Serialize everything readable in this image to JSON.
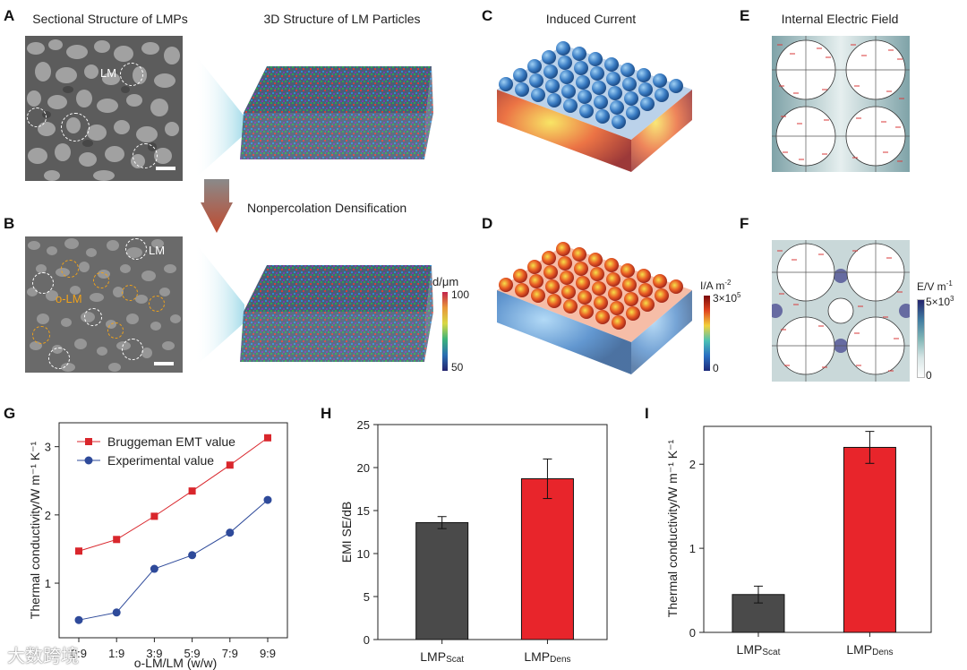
{
  "panels": {
    "A": {
      "letter": "A",
      "title": "Sectional Structure of LMPs",
      "label_lm": "LM"
    },
    "B": {
      "letter": "B",
      "label_lm": "LM",
      "label_olm": "o-LM"
    },
    "three_d": {
      "title": "3D Structure of LM Particles",
      "arrow_label": "Nonpercolation Densification",
      "colorbar_title": "d/μm",
      "colorbar_max": "100",
      "colorbar_min": "50"
    },
    "C": {
      "letter": "C",
      "title": "Induced Current"
    },
    "D": {
      "letter": "D",
      "colorbar_title": "I/A m",
      "colorbar_title_sup": "-2",
      "colorbar_max": "3×10",
      "colorbar_max_sup": "5",
      "colorbar_min": "0"
    },
    "E": {
      "letter": "E",
      "title": "Internal Electric Field"
    },
    "F": {
      "letter": "F",
      "colorbar_title": "E/V m",
      "colorbar_title_sup": "-1",
      "colorbar_max": "5×10",
      "colorbar_max_sup": "3",
      "colorbar_min": "0"
    },
    "G": {
      "letter": "G"
    },
    "H": {
      "letter": "H"
    },
    "I": {
      "letter": "I"
    }
  },
  "watermark": "大数跨境",
  "colors": {
    "red": "#d9262c",
    "blue": "#2e4a9a",
    "dark_bar": "#4a4a4a",
    "red_bar": "#e8252b"
  },
  "chart_data": [
    {
      "id": "G",
      "type": "line",
      "categories": [
        "0:9",
        "1:9",
        "3:9",
        "5:9",
        "7:9",
        "9:9"
      ],
      "series": [
        {
          "name": "Bruggeman EMT value",
          "values": [
            1.47,
            1.64,
            1.98,
            2.35,
            2.73,
            3.13
          ]
        },
        {
          "name": "Experimental value",
          "values": [
            0.46,
            0.57,
            1.21,
            1.41,
            1.74,
            2.22
          ]
        }
      ],
      "xlabel": "o-LM/LM (w/w)",
      "ylabel": "Thermal conductivity/W m⁻¹ K⁻¹",
      "ylim": [
        0.2,
        3.35
      ],
      "yticks": [
        1,
        2,
        3
      ]
    },
    {
      "id": "H",
      "type": "bar",
      "categories": [
        {
          "main": "LMP",
          "sub": "Scat"
        },
        {
          "main": "LMP",
          "sub": "Dens"
        }
      ],
      "values": [
        13.6,
        18.7
      ],
      "errors": [
        0.7,
        2.3
      ],
      "ylabel": "EMI SE/dB",
      "ylim": [
        0,
        25
      ],
      "yticks": [
        0,
        5,
        10,
        15,
        20,
        25
      ]
    },
    {
      "id": "I",
      "type": "bar",
      "categories": [
        {
          "main": "LMP",
          "sub": "Scat"
        },
        {
          "main": "LMP",
          "sub": "Dens"
        }
      ],
      "values": [
        0.45,
        2.2
      ],
      "errors": [
        0.1,
        0.19
      ],
      "ylabel": "Thermal conductivity/W m⁻¹ K⁻¹",
      "ylim": [
        0,
        2.45
      ],
      "yticks": [
        0,
        1,
        2
      ]
    }
  ]
}
